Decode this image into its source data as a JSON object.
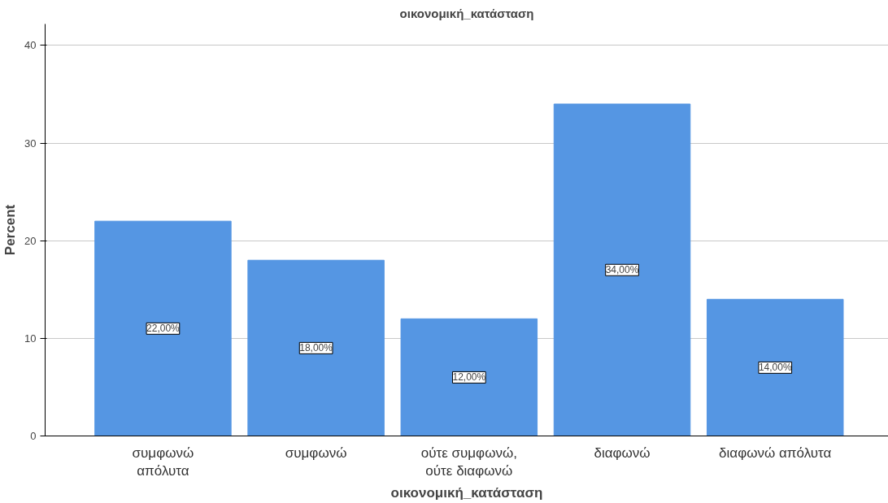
{
  "chart_data": {
    "type": "bar",
    "title": "οικονομική_κατάσταση",
    "xlabel": "οικονομική_κατάσταση",
    "ylabel": "Percent",
    "categories": [
      "συμφωνώ\nαπόλυτα",
      "συμφωνώ",
      "ούτε συμφωνώ,\nούτε διαφωνώ",
      "διαφωνώ",
      "διαφωνώ απόλυτα"
    ],
    "values": [
      22,
      18,
      12,
      34,
      14
    ],
    "value_labels": [
      "22,00%",
      "18,00%",
      "12,00%",
      "34,00%",
      "14,00%"
    ],
    "color": "#5596e3",
    "ylim": [
      0,
      42.2
    ],
    "yticks": [
      0,
      10,
      20,
      30,
      40
    ],
    "grid": "y"
  }
}
